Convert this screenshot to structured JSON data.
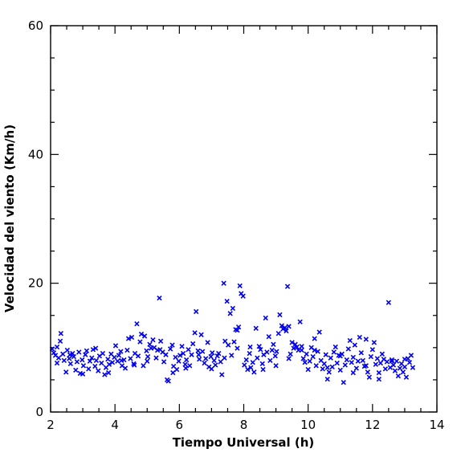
{
  "chart_data": {
    "type": "scatter",
    "xlabel": "Tiempo Universal (h)",
    "ylabel": "Velocidad del viento (Km/h)",
    "xlim": [
      2,
      14
    ],
    "ylim": [
      0,
      60
    ],
    "x_major_ticks": [
      2,
      4,
      6,
      8,
      10,
      12,
      14
    ],
    "x_minor_step": 0.5,
    "y_major_ticks": [
      0,
      20,
      40,
      60
    ],
    "y_minor_step": 5,
    "x_tick_labels": [
      "2",
      "4",
      "6",
      "8",
      "10",
      "12",
      "14"
    ],
    "y_tick_labels": [
      "0",
      "20",
      "40",
      "60"
    ],
    "marker": "x",
    "color": "#0000ee",
    "grid": false,
    "legend": "none",
    "series": [
      {
        "points": [
          [
            2.05,
            9.8
          ],
          [
            2.1,
            9.2
          ],
          [
            2.15,
            8.8
          ],
          [
            2.2,
            10.1
          ],
          [
            2.25,
            8.4
          ],
          [
            2.3,
            11.0
          ],
          [
            2.32,
            12.2
          ],
          [
            2.38,
            9.0
          ],
          [
            2.42,
            8.0
          ],
          [
            2.48,
            6.2
          ],
          [
            2.52,
            9.6
          ],
          [
            2.58,
            8.3
          ],
          [
            2.62,
            7.5
          ],
          [
            2.68,
            9.1
          ],
          [
            2.72,
            8.6
          ],
          [
            2.78,
            6.5
          ],
          [
            2.82,
            7.8
          ],
          [
            2.88,
            9.3
          ],
          [
            2.92,
            6.0
          ],
          [
            2.98,
            8.1
          ],
          [
            3.02,
            7.2
          ],
          [
            3.08,
            8.9
          ],
          [
            3.12,
            9.5
          ],
          [
            3.18,
            6.7
          ],
          [
            3.22,
            7.9
          ],
          [
            3.28,
            8.4
          ],
          [
            3.32,
            9.7
          ],
          [
            3.38,
            7.1
          ],
          [
            3.42,
            8.0
          ],
          [
            3.48,
            6.4
          ],
          [
            3.52,
            8.7
          ],
          [
            3.58,
            7.6
          ],
          [
            3.62,
            9.1
          ],
          [
            3.68,
            5.8
          ],
          [
            3.72,
            6.9
          ],
          [
            3.78,
            8.2
          ],
          [
            3.82,
            7.4
          ],
          [
            3.88,
            9.0
          ],
          [
            3.92,
            7.7
          ],
          [
            3.98,
            8.5
          ],
          [
            4.02,
            10.3
          ],
          [
            4.08,
            7.9
          ],
          [
            4.12,
            8.8
          ],
          [
            4.18,
            9.4
          ],
          [
            4.22,
            7.2
          ],
          [
            4.28,
            8.1
          ],
          [
            4.32,
            6.8
          ],
          [
            4.38,
            9.6
          ],
          [
            4.42,
            11.4
          ],
          [
            4.48,
            8.3
          ],
          [
            4.52,
            11.6
          ],
          [
            4.58,
            7.5
          ],
          [
            4.62,
            9.1
          ],
          [
            4.68,
            13.7
          ],
          [
            4.72,
            8.7
          ],
          [
            4.78,
            10.9
          ],
          [
            4.82,
            12.1
          ],
          [
            4.88,
            7.2
          ],
          [
            4.92,
            11.8
          ],
          [
            4.98,
            9.5
          ],
          [
            5.02,
            8.6
          ],
          [
            5.08,
            10.5
          ],
          [
            5.12,
            9.9
          ],
          [
            5.18,
            11.2
          ],
          [
            5.22,
            10.0
          ],
          [
            5.28,
            8.4
          ],
          [
            5.32,
            9.6
          ],
          [
            5.38,
            17.7
          ],
          [
            5.42,
            11.0
          ],
          [
            5.48,
            9.3
          ],
          [
            5.52,
            7.8
          ],
          [
            5.58,
            8.9
          ],
          [
            5.62,
            5.0
          ],
          [
            5.66,
            4.8
          ],
          [
            5.72,
            9.8
          ],
          [
            5.78,
            10.4
          ],
          [
            5.82,
            7.1
          ],
          [
            5.88,
            8.5
          ],
          [
            5.92,
            6.6
          ],
          [
            5.98,
            7.9
          ],
          [
            6.02,
            8.8
          ],
          [
            6.08,
            10.2
          ],
          [
            6.12,
            9.1
          ],
          [
            6.18,
            7.4
          ],
          [
            6.22,
            8.1
          ],
          [
            6.28,
            9.7
          ],
          [
            6.32,
            7.2
          ],
          [
            6.38,
            8.9
          ],
          [
            6.42,
            10.6
          ],
          [
            6.48,
            12.3
          ],
          [
            6.52,
            15.6
          ],
          [
            6.58,
            9.5
          ],
          [
            6.62,
            8.2
          ],
          [
            6.68,
            12.0
          ],
          [
            6.72,
            9.4
          ],
          [
            6.78,
            7.6
          ],
          [
            6.82,
            8.3
          ],
          [
            6.88,
            10.8
          ],
          [
            6.92,
            7.0
          ],
          [
            6.98,
            8.6
          ],
          [
            7.02,
            9.2
          ],
          [
            7.08,
            8.0
          ],
          [
            7.12,
            7.3
          ],
          [
            7.18,
            8.7
          ],
          [
            7.22,
            9.1
          ],
          [
            7.28,
            7.8
          ],
          [
            7.32,
            5.8
          ],
          [
            7.38,
            20.0
          ],
          [
            7.42,
            11.0
          ],
          [
            7.48,
            17.2
          ],
          [
            7.52,
            10.4
          ],
          [
            7.58,
            15.3
          ],
          [
            7.62,
            8.8
          ],
          [
            7.66,
            16.1
          ],
          [
            7.7,
            10.9
          ],
          [
            7.75,
            12.8
          ],
          [
            7.8,
            12.7
          ],
          [
            7.84,
            13.2
          ],
          [
            7.88,
            19.6
          ],
          [
            7.92,
            18.4
          ],
          [
            7.98,
            18.0
          ],
          [
            8.02,
            7.3
          ],
          [
            8.08,
            8.1
          ],
          [
            8.12,
            6.6
          ],
          [
            8.18,
            9.1
          ],
          [
            8.22,
            6.9
          ],
          [
            8.28,
            7.7
          ],
          [
            8.32,
            6.2
          ],
          [
            8.38,
            13.0
          ],
          [
            8.42,
            8.4
          ],
          [
            8.48,
            10.2
          ],
          [
            8.52,
            9.7
          ],
          [
            8.58,
            7.5
          ],
          [
            8.62,
            8.9
          ],
          [
            8.68,
            14.6
          ],
          [
            8.72,
            9.3
          ],
          [
            8.78,
            11.7
          ],
          [
            8.82,
            8.0
          ],
          [
            8.88,
            9.6
          ],
          [
            8.92,
            10.5
          ],
          [
            8.98,
            8.7
          ],
          [
            9.02,
            9.4
          ],
          [
            9.08,
            12.2
          ],
          [
            9.12,
            15.1
          ],
          [
            9.18,
            13.4
          ],
          [
            9.22,
            12.9
          ],
          [
            9.28,
            13.1
          ],
          [
            9.32,
            12.6
          ],
          [
            9.36,
            19.5
          ],
          [
            9.4,
            13.3
          ],
          [
            9.45,
            9.0
          ],
          [
            9.5,
            10.8
          ],
          [
            9.55,
            9.9
          ],
          [
            9.6,
            10.5
          ],
          [
            9.65,
            10.1
          ],
          [
            9.7,
            9.6
          ],
          [
            9.75,
            14.0
          ],
          [
            9.8,
            10.2
          ],
          [
            9.85,
            8.3
          ],
          [
            9.9,
            7.7
          ],
          [
            9.95,
            9.0
          ],
          [
            10.0,
            6.6
          ],
          [
            10.05,
            7.9
          ],
          [
            10.1,
            10.0
          ],
          [
            10.15,
            8.6
          ],
          [
            10.2,
            11.4
          ],
          [
            10.25,
            7.2
          ],
          [
            10.3,
            9.4
          ],
          [
            10.35,
            12.4
          ],
          [
            10.4,
            8.0
          ],
          [
            10.45,
            6.7
          ],
          [
            10.5,
            7.5
          ],
          [
            10.55,
            8.9
          ],
          [
            10.6,
            5.1
          ],
          [
            10.65,
            6.2
          ],
          [
            10.7,
            8.4
          ],
          [
            10.75,
            7.0
          ],
          [
            10.8,
            9.3
          ],
          [
            10.85,
            10.1
          ],
          [
            10.9,
            7.6
          ],
          [
            10.95,
            8.8
          ],
          [
            11.0,
            6.5
          ],
          [
            11.05,
            9.0
          ],
          [
            11.1,
            4.6
          ],
          [
            11.15,
            7.3
          ],
          [
            11.2,
            8.1
          ],
          [
            11.25,
            9.8
          ],
          [
            11.3,
            11.1
          ],
          [
            11.35,
            7.7
          ],
          [
            11.4,
            8.5
          ],
          [
            11.45,
            10.4
          ],
          [
            11.5,
            6.8
          ],
          [
            11.55,
            7.9
          ],
          [
            11.6,
            11.6
          ],
          [
            11.65,
            9.2
          ],
          [
            11.7,
            8.0
          ],
          [
            11.75,
            7.1
          ],
          [
            11.8,
            11.3
          ],
          [
            11.85,
            6.2
          ],
          [
            11.9,
            5.4
          ],
          [
            11.95,
            8.6
          ],
          [
            12.0,
            9.7
          ],
          [
            12.05,
            10.8
          ],
          [
            12.1,
            7.4
          ],
          [
            12.15,
            8.3
          ],
          [
            12.2,
            6.1
          ],
          [
            12.25,
            7.6
          ],
          [
            12.3,
            9.0
          ],
          [
            12.35,
            8.2
          ],
          [
            12.4,
            6.7
          ],
          [
            12.45,
            7.8
          ],
          [
            12.5,
            17.0
          ],
          [
            12.55,
            6.9
          ],
          [
            12.6,
            8.1
          ],
          [
            12.65,
            7.3
          ],
          [
            12.7,
            6.4
          ],
          [
            12.75,
            7.9
          ],
          [
            12.8,
            5.6
          ],
          [
            12.85,
            6.8
          ],
          [
            12.9,
            7.5
          ],
          [
            12.95,
            6.2
          ],
          [
            13.0,
            7.0
          ],
          [
            13.05,
            5.4
          ],
          [
            13.1,
            8.3
          ],
          [
            13.15,
            7.7
          ],
          [
            13.2,
            8.8
          ],
          [
            13.25,
            6.9
          ],
          [
            2.2,
            7.6
          ],
          [
            2.6,
            8.9
          ],
          [
            3.0,
            5.9
          ],
          [
            3.4,
            9.9
          ],
          [
            3.8,
            6.1
          ],
          [
            4.2,
            8.0
          ],
          [
            4.6,
            7.3
          ],
          [
            5.0,
            7.9
          ],
          [
            5.4,
            9.7
          ],
          [
            5.8,
            6.1
          ],
          [
            6.2,
            6.8
          ],
          [
            6.6,
            8.9
          ],
          [
            7.0,
            6.7
          ],
          [
            7.4,
            8.4
          ],
          [
            7.8,
            9.9
          ],
          [
            8.2,
            10.1
          ],
          [
            8.6,
            6.6
          ],
          [
            9.0,
            7.2
          ],
          [
            9.4,
            8.3
          ],
          [
            9.8,
            9.6
          ],
          [
            10.2,
            9.6
          ],
          [
            10.6,
            6.9
          ],
          [
            11.0,
            8.7
          ],
          [
            11.4,
            6.1
          ],
          [
            11.8,
            7.2
          ],
          [
            12.2,
            5.1
          ],
          [
            12.6,
            7.9
          ],
          [
            13.0,
            8.2
          ]
        ]
      }
    ]
  }
}
